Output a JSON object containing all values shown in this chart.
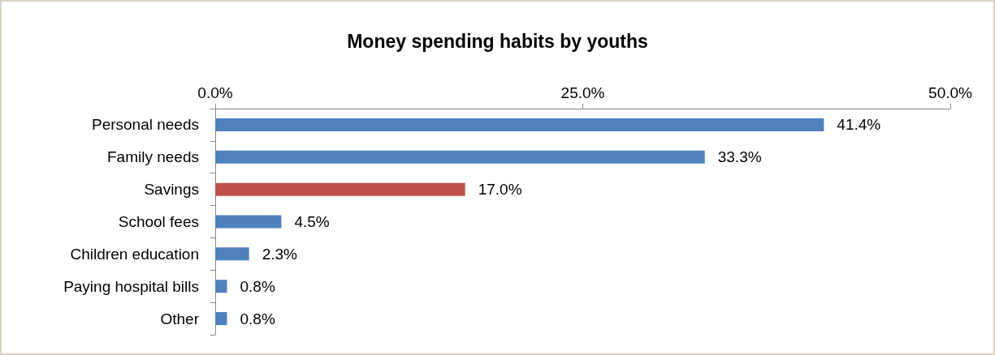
{
  "chart_data": {
    "type": "bar",
    "orientation": "horizontal",
    "title": "Money spending habits by youths",
    "categories": [
      "Personal needs",
      "Family needs",
      "Savings",
      "School fees",
      "Children education",
      "Paying hospital bills",
      "Other"
    ],
    "values": [
      41.4,
      33.3,
      17.0,
      4.5,
      2.3,
      0.8,
      0.8
    ],
    "colors": [
      "#4f81bd",
      "#4f81bd",
      "#c0504d",
      "#4f81bd",
      "#4f81bd",
      "#4f81bd",
      "#4f81bd"
    ],
    "value_labels": [
      "41.4%",
      "33.3%",
      "17.0%",
      "4.5%",
      "2.3%",
      "0.8%",
      "0.8%"
    ],
    "xlim": [
      0,
      50
    ],
    "xticks": [
      {
        "value": 0,
        "label": "0.0%"
      },
      {
        "value": 25,
        "label": "25.0%"
      },
      {
        "value": 50,
        "label": "50.0%"
      }
    ],
    "grid": false
  }
}
